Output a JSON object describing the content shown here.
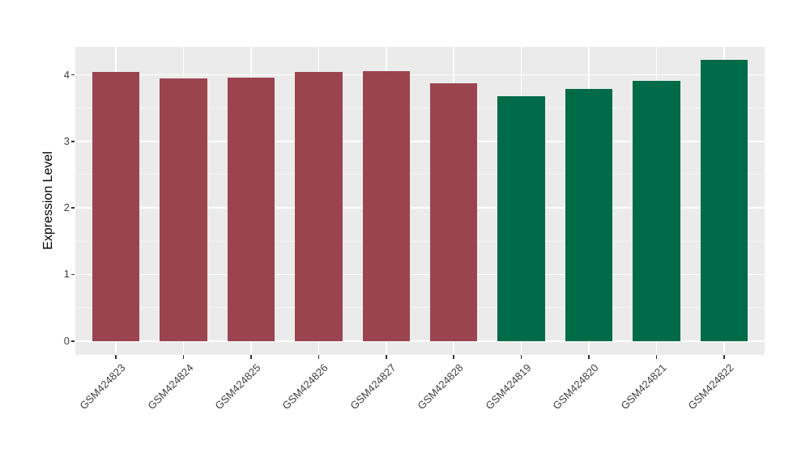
{
  "chart_data": {
    "type": "bar",
    "title": "",
    "xlabel": "",
    "ylabel": "Expression Level",
    "categories": [
      "GSM424823",
      "GSM424824",
      "GSM424825",
      "GSM424826",
      "GSM424827",
      "GSM424828",
      "GSM424819",
      "GSM424820",
      "GSM424821",
      "GSM424822"
    ],
    "values": [
      4.04,
      3.94,
      3.96,
      4.04,
      4.05,
      3.87,
      3.68,
      3.79,
      3.91,
      4.22
    ],
    "bar_groups": [
      "group1",
      "group1",
      "group1",
      "group1",
      "group1",
      "group1",
      "group2",
      "group2",
      "group2",
      "group2"
    ],
    "group_colors": {
      "group1": "#9B4450",
      "group2": "#006B48"
    },
    "yticks": [
      0,
      1,
      2,
      3,
      4
    ],
    "ytick_minor": [
      0.5,
      1.5,
      2.5,
      3.5
    ],
    "ylim": [
      -0.21,
      4.42
    ],
    "bar_width_fraction": 0.7,
    "legend": "none",
    "grid": "on",
    "panel_background": "#EBEBEB",
    "gridline_color": "#FFFFFF",
    "axis_text_color": "#404040",
    "axis_title_color": "#000000",
    "x_label_angle_deg": 45
  }
}
